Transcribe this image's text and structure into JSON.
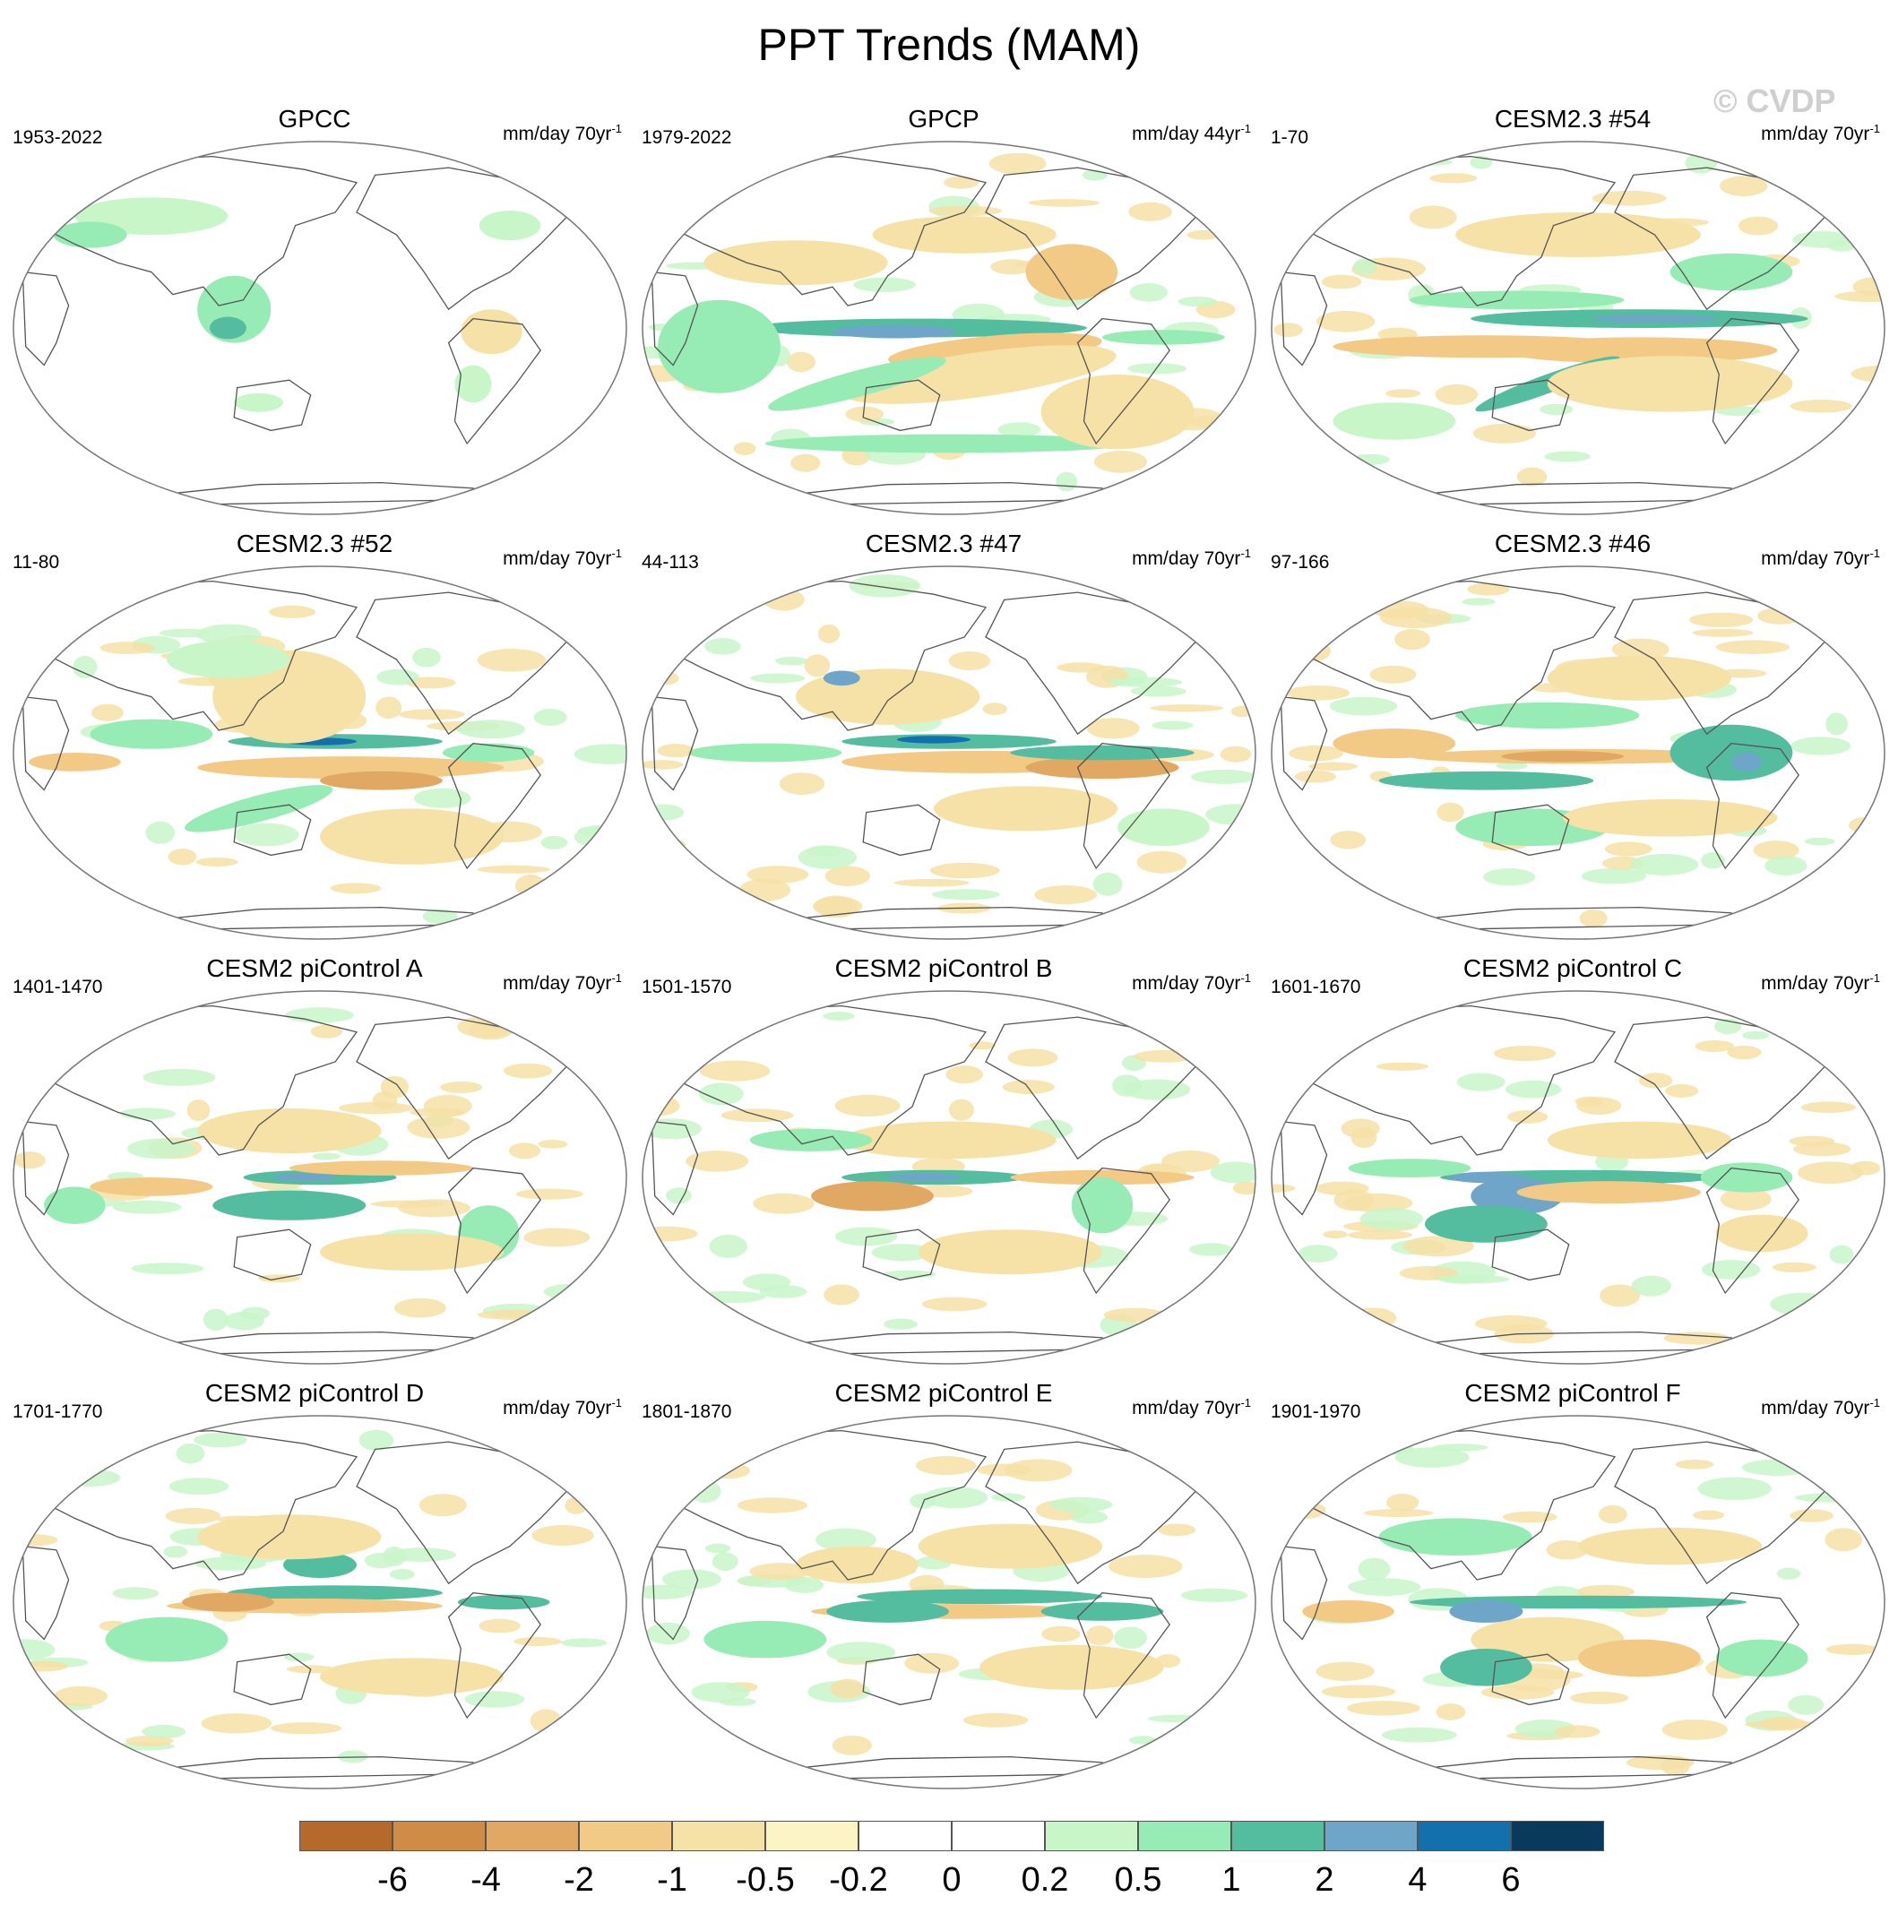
{
  "figure": {
    "title": "PPT Trends (MAM)",
    "watermark": "© CVDP"
  },
  "panels": [
    {
      "title": "GPCC",
      "period": "1953-2022",
      "units": "mm/day 70yr",
      "exponent": "-1",
      "pattern": "gpcc"
    },
    {
      "title": "GPCP",
      "period": "1979-2022",
      "units": "mm/day 44yr",
      "exponent": "-1",
      "pattern": "gpcp"
    },
    {
      "title": "CESM2.3 #54",
      "period": "1-70",
      "units": "mm/day 70yr",
      "exponent": "-1",
      "pattern": "m54"
    },
    {
      "title": "CESM2.3 #52",
      "period": "11-80",
      "units": "mm/day 70yr",
      "exponent": "-1",
      "pattern": "m52"
    },
    {
      "title": "CESM2.3 #47",
      "period": "44-113",
      "units": "mm/day 70yr",
      "exponent": "-1",
      "pattern": "m47"
    },
    {
      "title": "CESM2.3 #46",
      "period": "97-166",
      "units": "mm/day 70yr",
      "exponent": "-1",
      "pattern": "m46"
    },
    {
      "title": "CESM2 piControl A",
      "period": "1401-1470",
      "units": "mm/day 70yr",
      "exponent": "-1",
      "pattern": "pa"
    },
    {
      "title": "CESM2 piControl B",
      "period": "1501-1570",
      "units": "mm/day 70yr",
      "exponent": "-1",
      "pattern": "pb"
    },
    {
      "title": "CESM2 piControl C",
      "period": "1601-1670",
      "units": "mm/day 70yr",
      "exponent": "-1",
      "pattern": "pc"
    },
    {
      "title": "CESM2 piControl D",
      "period": "1701-1770",
      "units": "mm/day 70yr",
      "exponent": "-1",
      "pattern": "pd"
    },
    {
      "title": "CESM2 piControl E",
      "period": "1801-1870",
      "units": "mm/day 70yr",
      "exponent": "-1",
      "pattern": "pe"
    },
    {
      "title": "CESM2 piControl F",
      "period": "1901-1970",
      "units": "mm/day 70yr",
      "exponent": "-1",
      "pattern": "pf"
    }
  ],
  "colorbar": {
    "colors": [
      "#b5692a",
      "#d08c46",
      "#e0a862",
      "#f2c985",
      "#f6e1a6",
      "#fdf4c3",
      "#ffffff",
      "#ffffff",
      "#c8f6c9",
      "#97ebb5",
      "#54bc9f",
      "#6fa5c9",
      "#1470ad",
      "#093a5e"
    ],
    "labels": [
      "-6",
      "-4",
      "-2",
      "-1",
      "-0.5",
      "-0.2",
      "0",
      "0.2",
      "0.5",
      "1",
      "2",
      "4",
      "6"
    ]
  }
}
